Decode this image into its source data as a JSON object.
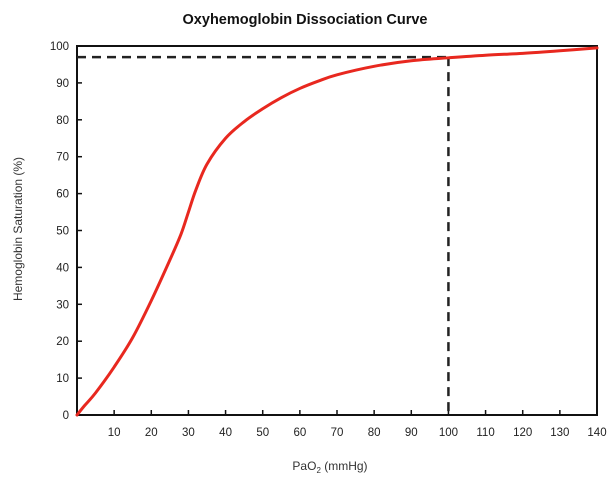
{
  "chart_data": {
    "type": "line",
    "title": "Oxyhemoglobin Dissociation Curve",
    "xlabel_main": "PaO",
    "xlabel_subscript": "2",
    "xlabel_unit": " (mmHg)",
    "ylabel": "Hemoglobin Saturation (%)",
    "xlim": [
      0,
      140
    ],
    "ylim": [
      0,
      100
    ],
    "x_ticks": [
      10,
      20,
      30,
      40,
      50,
      60,
      70,
      80,
      90,
      100,
      110,
      120,
      130,
      140
    ],
    "y_ticks": [
      0,
      10,
      20,
      30,
      40,
      50,
      60,
      70,
      80,
      90,
      100
    ],
    "grid": false,
    "series": [
      {
        "color": "#e8281f",
        "x": [
          0,
          2,
          5,
          10,
          15,
          20,
          25,
          28,
          30,
          32,
          35,
          40,
          45,
          50,
          55,
          60,
          65,
          70,
          80,
          90,
          100,
          110,
          120,
          130,
          140
        ],
        "y": [
          0,
          2.5,
          6,
          13,
          21,
          31,
          42,
          49,
          55,
          61,
          68,
          75,
          79.5,
          83,
          86,
          88.5,
          90.5,
          92.2,
          94.5,
          96,
          96.8,
          97.5,
          98,
          98.7,
          99.5
        ]
      }
    ],
    "reference_lines": {
      "x": 100,
      "y": 97,
      "style": "dashed",
      "color": "#222222"
    }
  }
}
